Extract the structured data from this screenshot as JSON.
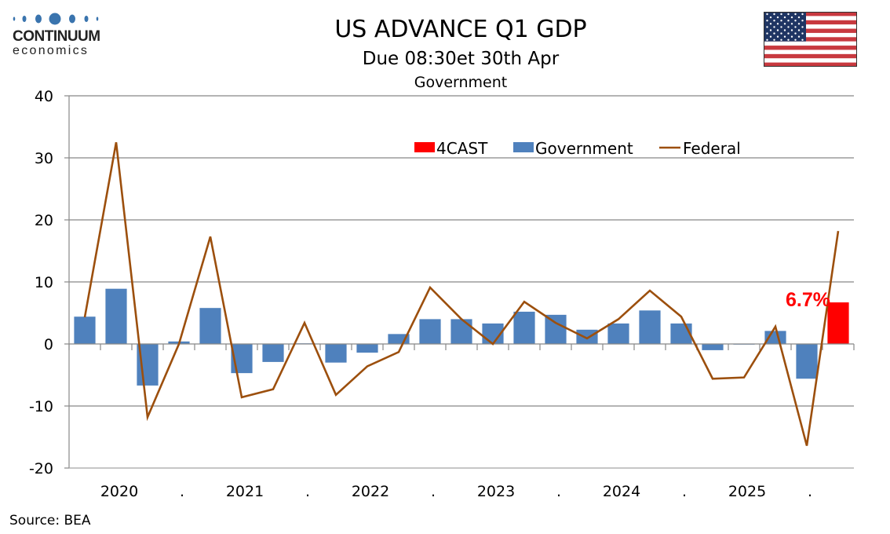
{
  "header": {
    "title": "US ADVANCE Q1 GDP",
    "subtitle": "Due 08:30et 30th Apr",
    "section": "Government"
  },
  "logo": {
    "line1": "CONTINUUM",
    "line2": "economics",
    "color": "#3a74ae"
  },
  "flag": {
    "icon": "us-flag-icon"
  },
  "source": "Source: BEA",
  "chart_data": {
    "type": "bar",
    "title": "Government",
    "xlabel": "",
    "ylabel": "",
    "ylim": [
      -20,
      40
    ],
    "yticks": [
      40,
      30,
      20,
      10,
      0,
      -10,
      -20
    ],
    "grid": true,
    "legend_position": "top-right",
    "categories": [
      "2020Q1",
      "2020Q2",
      "2020Q3",
      "2020Q4",
      "2021Q1",
      "2021Q2",
      "2021Q3",
      "2021Q4",
      "2022Q1",
      "2022Q2",
      "2022Q3",
      "2022Q4",
      "2023Q1",
      "2023Q2",
      "2023Q3",
      "2023Q4",
      "2024Q1",
      "2024Q2",
      "2024Q3",
      "2024Q4",
      "2025Q1",
      "2025Q2",
      "2025Q3",
      "2025Q4",
      "2026Q1"
    ],
    "xtick_labels": [
      "2020",
      ".",
      "2021",
      ".",
      "2022",
      ".",
      "2023",
      ".",
      "2024",
      ".",
      "2025",
      "."
    ],
    "series": [
      {
        "name": "4CAST",
        "type": "bar",
        "color": "#ff0000",
        "values": [
          null,
          null,
          null,
          null,
          null,
          null,
          null,
          null,
          null,
          null,
          null,
          null,
          null,
          null,
          null,
          null,
          null,
          null,
          null,
          null,
          null,
          null,
          null,
          null,
          6.7
        ]
      },
      {
        "name": "Government",
        "type": "bar",
        "color": "#4f81bd",
        "values": [
          4.4,
          8.9,
          -6.7,
          0.4,
          5.8,
          -4.7,
          -2.9,
          0.1,
          -3.0,
          -1.4,
          1.6,
          4.0,
          4.0,
          3.3,
          5.2,
          4.7,
          2.3,
          3.3,
          5.4,
          3.3,
          -1.0,
          0.0,
          2.1,
          -5.6,
          null
        ]
      },
      {
        "name": "Federal",
        "type": "line",
        "color": "#9c4f0d",
        "values": [
          4.3,
          32.5,
          -11.8,
          0.0,
          17.3,
          -8.6,
          -7.3,
          3.4,
          -8.2,
          -3.6,
          -1.3,
          9.1,
          4.0,
          0.0,
          6.8,
          3.4,
          0.9,
          4.0,
          8.6,
          4.4,
          -5.6,
          -5.4,
          2.8,
          -16.4,
          18.2
        ]
      }
    ],
    "annotations": [
      {
        "text": "6.7%",
        "category": "2026Q1",
        "color": "#ff0000"
      }
    ]
  }
}
